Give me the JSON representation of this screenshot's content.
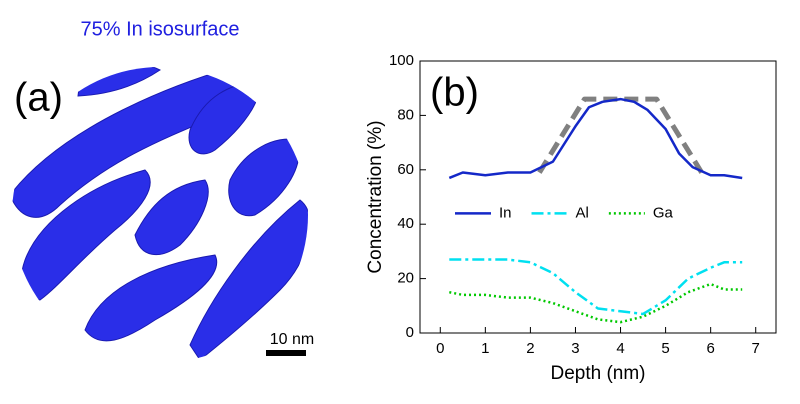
{
  "panel_a": {
    "label": "(a)",
    "title": "75% In isosurface",
    "scale_bar": "10 nm"
  },
  "chart_data": {
    "type": "line",
    "panel_label": "(b)",
    "x_label": "Depth (nm)",
    "y_label": "Concentration (%)",
    "xlim": [
      -0.45,
      7.45
    ],
    "ylim": [
      0,
      100
    ],
    "xticks": [
      0,
      1,
      2,
      3,
      4,
      5,
      6,
      7
    ],
    "yticks": [
      0,
      20,
      40,
      60,
      80,
      100
    ],
    "legend": "center",
    "series": [
      {
        "name": "In",
        "color": "#1428c8",
        "style": "solid",
        "x": [
          0.2,
          0.5,
          1,
          1.5,
          2,
          2.5,
          3,
          3.3,
          3.6,
          4,
          4.3,
          4.6,
          5,
          5.3,
          5.6,
          6,
          6.3,
          6.7
        ],
        "values": [
          57,
          59,
          58,
          59,
          59,
          63,
          76,
          83,
          85,
          86,
          85,
          82,
          75,
          66,
          61,
          58,
          58,
          57
        ]
      },
      {
        "name": "Al",
        "color": "#00e0f0",
        "style": "dashdot",
        "x": [
          0.2,
          0.5,
          1,
          1.5,
          2,
          2.5,
          3,
          3.5,
          4,
          4.5,
          5,
          5.5,
          6,
          6.3,
          6.7
        ],
        "values": [
          27,
          27,
          27,
          27,
          26,
          22,
          15,
          9,
          8,
          7,
          12,
          20,
          24,
          26,
          26
        ]
      },
      {
        "name": "Ga",
        "color": "#00c800",
        "style": "dotted",
        "x": [
          0.2,
          0.5,
          1,
          1.5,
          2,
          2.5,
          3,
          3.5,
          4,
          4.5,
          5,
          5.5,
          6,
          6.3,
          6.7
        ],
        "values": [
          15,
          14,
          14,
          13,
          13,
          11,
          8,
          5,
          4,
          6,
          10,
          15,
          18,
          16,
          16
        ]
      },
      {
        "color": "#808080",
        "style": "dashed",
        "x": [
          2.2,
          3.2,
          4.8,
          5.8
        ],
        "values": [
          59,
          86,
          86,
          59
        ]
      }
    ]
  }
}
